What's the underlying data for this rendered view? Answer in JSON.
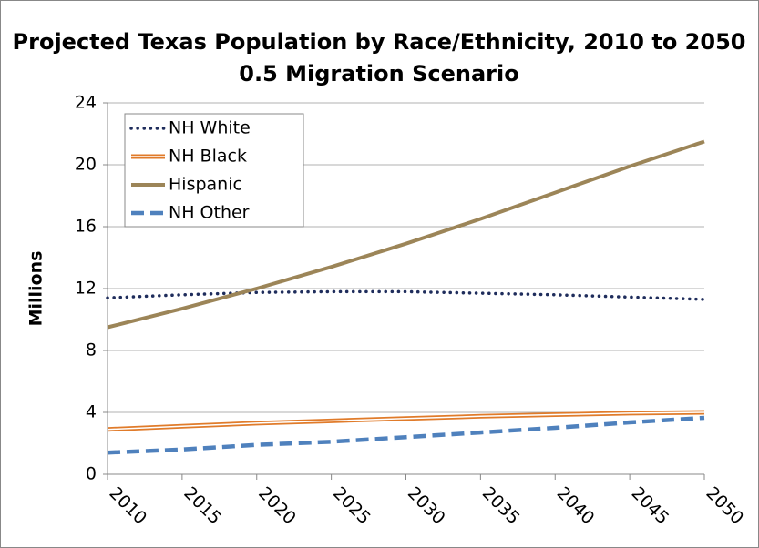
{
  "chart_data": {
    "type": "line",
    "title": "Projected Texas Population by Race/Ethnicity, 2010 to 2050",
    "subtitle": "0.5 Migration Scenario",
    "y_label": "Millions",
    "x": [
      2010,
      2015,
      2020,
      2025,
      2030,
      2035,
      2040,
      2045,
      2050
    ],
    "xlim": [
      2010,
      2050
    ],
    "xticks": [
      2010,
      2015,
      2020,
      2025,
      2030,
      2035,
      2040,
      2045,
      2050
    ],
    "ylim": [
      0,
      24
    ],
    "yticks": [
      0,
      4,
      8,
      12,
      16,
      20,
      24
    ],
    "grid": true,
    "legend": "top-left",
    "series": [
      {
        "name": "NH White",
        "color": "#1f2d5c",
        "line_style": "dotted",
        "values": [
          11.4,
          11.6,
          11.75,
          11.8,
          11.8,
          11.7,
          11.6,
          11.45,
          11.3
        ]
      },
      {
        "name": "NH Black",
        "color": "#e07b2a",
        "line_style": "double",
        "values": [
          2.9,
          3.1,
          3.3,
          3.45,
          3.6,
          3.75,
          3.85,
          3.95,
          4.0
        ]
      },
      {
        "name": "Hispanic",
        "color": "#9c8558",
        "line_style": "solid",
        "values": [
          9.5,
          10.7,
          12.0,
          13.4,
          14.9,
          16.5,
          18.2,
          19.9,
          21.5
        ]
      },
      {
        "name": "NH Other",
        "color": "#4f81bd",
        "line_style": "dashed",
        "values": [
          1.4,
          1.6,
          1.9,
          2.1,
          2.4,
          2.7,
          3.0,
          3.35,
          3.65
        ]
      }
    ]
  }
}
